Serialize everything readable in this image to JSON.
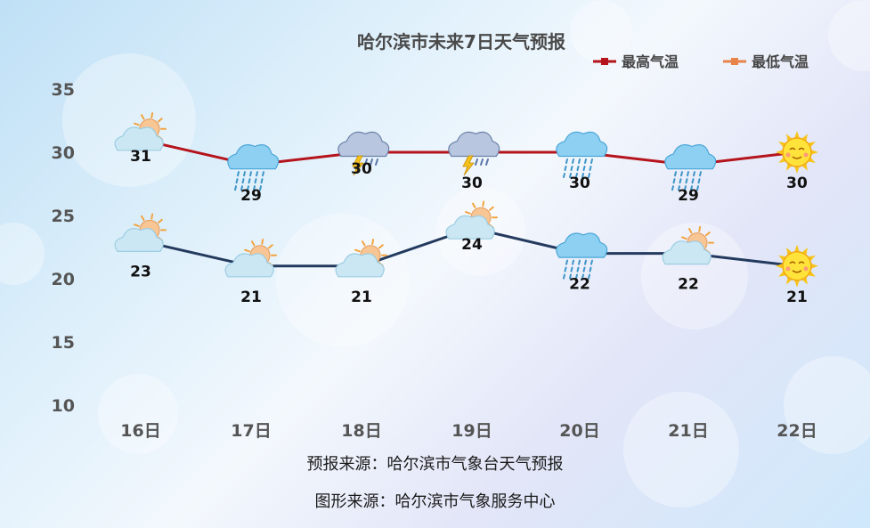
{
  "chart_data": {
    "type": "line",
    "title": "哈尔滨市未来7日天气预报",
    "categories": [
      "16日",
      "17日",
      "18日",
      "19日",
      "20日",
      "21日",
      "22日"
    ],
    "series": [
      {
        "name": "最高气温",
        "color": "#b5141c",
        "values": [
          31,
          29,
          30,
          30,
          30,
          29,
          30
        ],
        "icons": [
          "partly-cloudy-icon",
          "rain-icon",
          "thunderstorm-icon",
          "thunderstorm-icon",
          "rain-icon",
          "rain-icon",
          "sun-icon"
        ]
      },
      {
        "name": "最低气温",
        "color": "#233a5e",
        "legend_color": "#e8834a",
        "values": [
          23,
          21,
          21,
          24,
          22,
          22,
          21
        ],
        "icons": [
          "partly-cloudy-icon",
          "partly-cloudy-icon",
          "partly-cloudy-icon",
          "partly-cloudy-icon",
          "rain-icon",
          "partly-cloudy-icon",
          "sun-icon"
        ]
      }
    ],
    "y_ticks": [
      10,
      15,
      20,
      25,
      30,
      35
    ],
    "ylim": [
      10,
      35
    ],
    "grid": false,
    "legend_position": "top-right",
    "label_offsets_high": [
      1,
      2,
      1,
      2,
      2,
      2,
      2
    ],
    "label_offsets_low": [
      2,
      2,
      2,
      1,
      2,
      2,
      2
    ]
  },
  "footer": {
    "forecast_source": "预报来源：哈尔滨市气象台天气预报",
    "graphic_source": "图形来源：哈尔滨市气象服务中心"
  }
}
